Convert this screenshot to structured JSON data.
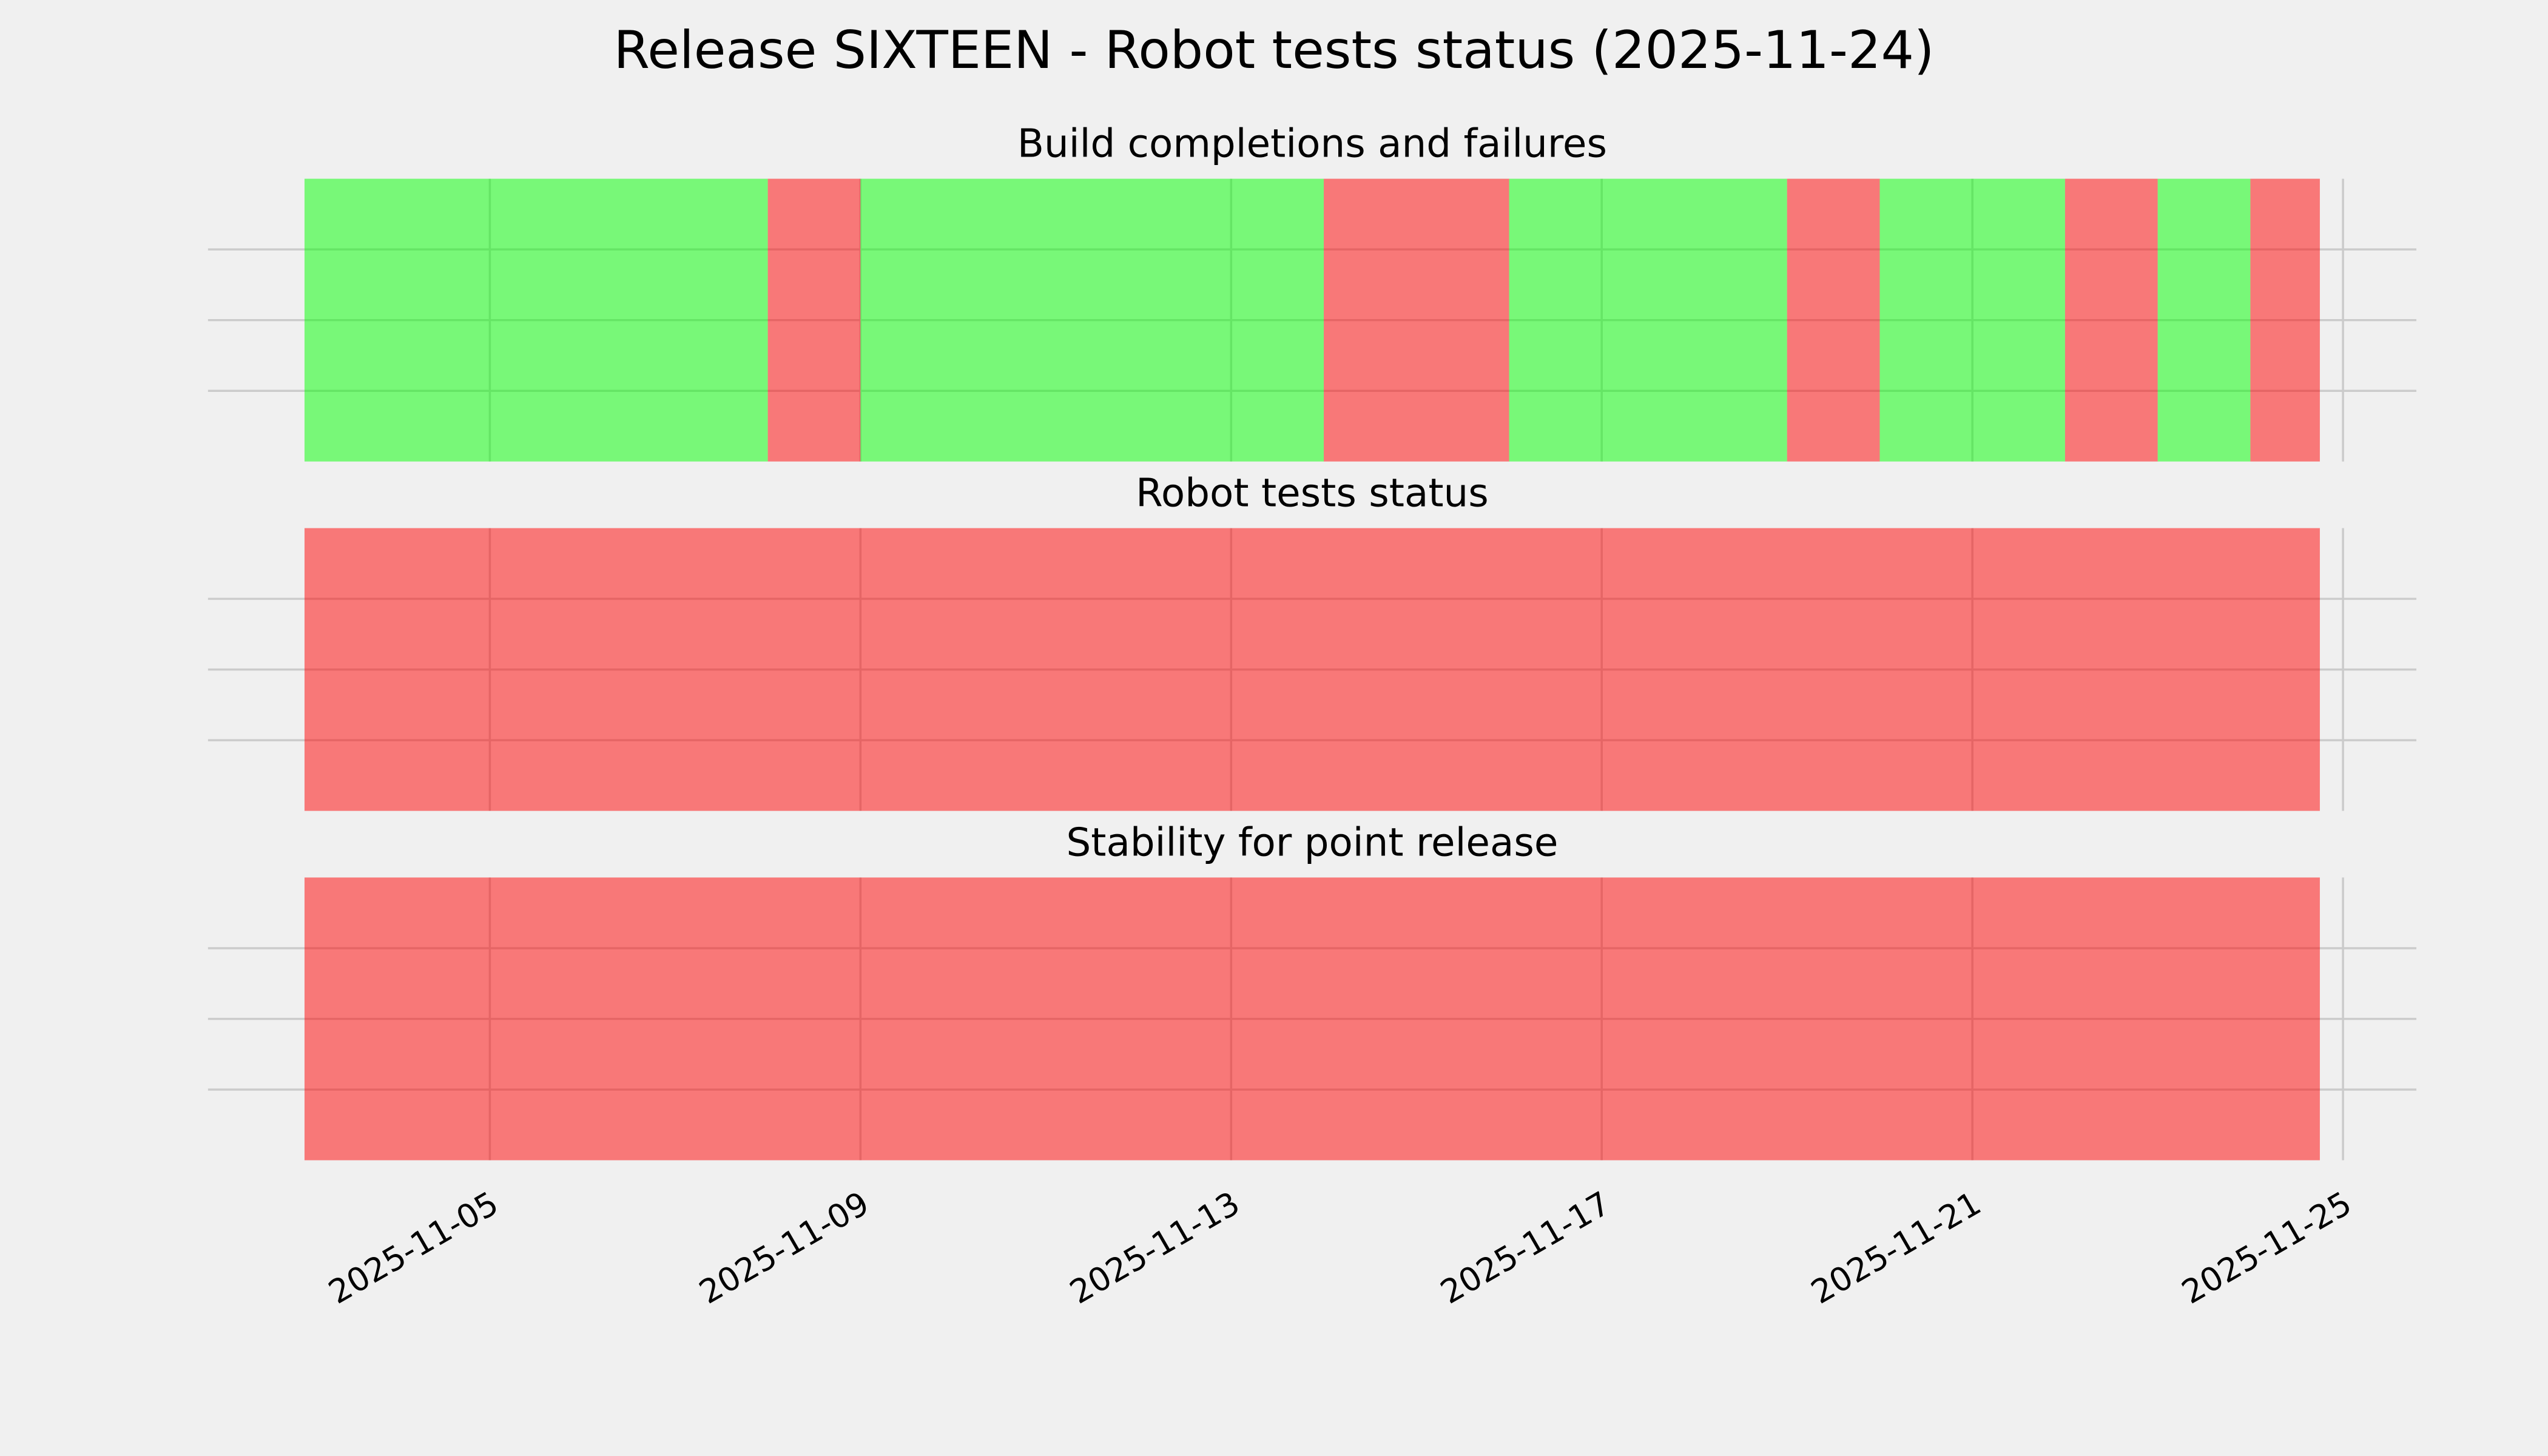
{
  "title": "Release SIXTEEN - Robot tests status (2025-11-24)",
  "xlim": [
    "2025-11-01T23:00",
    "2025-11-25T19:00"
  ],
  "xticks": [
    "2025-11-05",
    "2025-11-09",
    "2025-11-13",
    "2025-11-17",
    "2025-11-21",
    "2025-11-25"
  ],
  "grid": true,
  "chart_data": [
    {
      "type": "timeline",
      "title": "Build completions and failures",
      "x": [
        "2025-11-03",
        "2025-11-08",
        "2025-11-09",
        "2025-11-14",
        "2025-11-16",
        "2025-11-19",
        "2025-11-20",
        "2025-11-22",
        "2025-11-23",
        "2025-11-24",
        "2025-11-24T18:00"
      ],
      "colors": [
        "#00ff00",
        "#ff0000",
        "#00ff00",
        "#ff0000",
        "#00ff00",
        "#ff0000",
        "#00ff00",
        "#ff0000",
        "#00ff00",
        "#ff0000"
      ],
      "alpha": 0.5,
      "ylim": [
        0,
        1
      ],
      "yticks": [
        0.25,
        0.5,
        0.75
      ]
    },
    {
      "type": "timeline",
      "title": "Robot tests status",
      "x": [
        "2025-11-03",
        "2025-11-24T18:00"
      ],
      "colors": [
        "#ff0000"
      ],
      "alpha": 0.5,
      "ylim": [
        0,
        1
      ],
      "yticks": [
        0.25,
        0.5,
        0.75
      ]
    },
    {
      "type": "timeline",
      "title": "Stability for point release",
      "x": [
        "2025-11-03",
        "2025-11-24T18:00"
      ],
      "colors": [
        "#ff0000"
      ],
      "alpha": 0.5,
      "ylim": [
        0,
        1
      ],
      "yticks": [
        0.25,
        0.5,
        0.75
      ]
    }
  ]
}
